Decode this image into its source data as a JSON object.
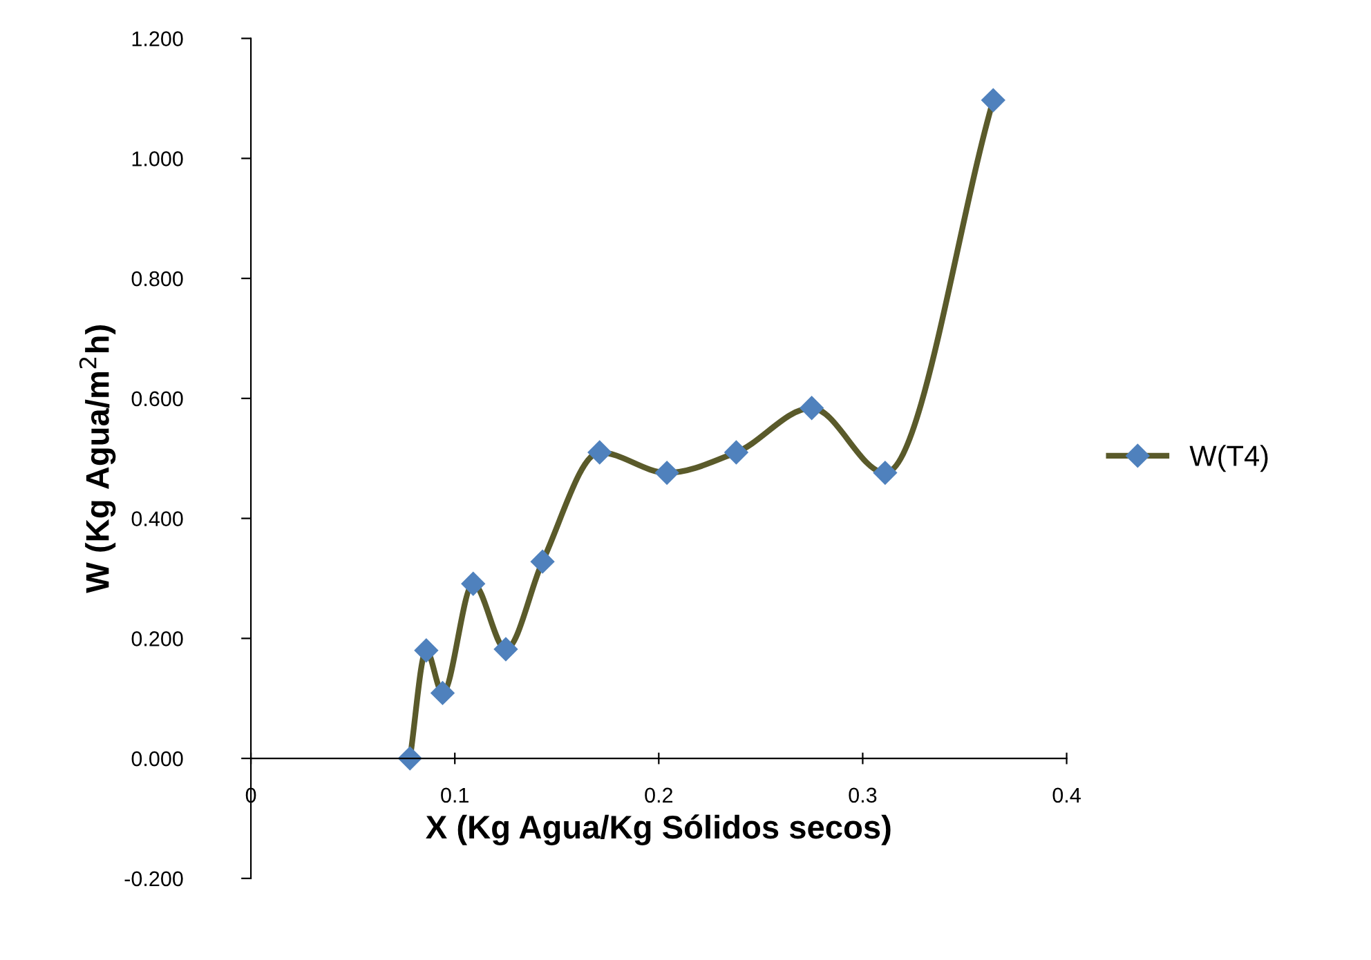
{
  "chart_data": {
    "type": "line",
    "xlabel": "X (Kg Agua/Kg Sólidos secos)",
    "ylabel": "W (Kg Agua/m$^{2}$h)",
    "series": [
      {
        "name": "W(T4)",
        "color": "#5a5a2a",
        "colors": [
          "#4f81bd",
          "#4f81bd",
          "#4f81bd",
          "#4f81bd",
          "#4f81bd",
          "#4f81bd",
          "#4f81bd",
          "#4f81bd",
          "#4f81bd",
          "#4f81bd",
          "#4f81bd",
          "#4f81bd"
        ],
        "x": [
          0.078,
          0.086,
          0.094,
          0.109,
          0.125,
          0.143,
          0.171,
          0.204,
          0.238,
          0.275,
          0.311,
          0.364
        ],
        "values": [
          0.0,
          0.18,
          0.109,
          0.291,
          0.182,
          0.328,
          0.51,
          0.476,
          0.51,
          0.584,
          0.476,
          1.097
        ]
      }
    ],
    "xlim": [
      0,
      0.4
    ],
    "xticks": [
      0,
      0.1,
      0.2,
      0.3,
      0.4
    ],
    "ylim": [
      -0.2,
      1.2
    ],
    "yticks": [
      {
        "value": -0.2,
        "label": "-0.200"
      },
      {
        "value": 0,
        "label": "0.000"
      },
      {
        "value": 0.2,
        "label": "0.200"
      },
      {
        "value": 0.4,
        "label": "0.400"
      },
      {
        "value": 0.6,
        "label": "0.600"
      },
      {
        "value": 0.8,
        "label": "0.800"
      },
      {
        "value": 1.0,
        "label": "1.000"
      },
      {
        "value": 1.2,
        "label": "1.200"
      }
    ],
    "marker": "diamond",
    "line_style": "solid",
    "grid": false,
    "legend": "right"
  }
}
